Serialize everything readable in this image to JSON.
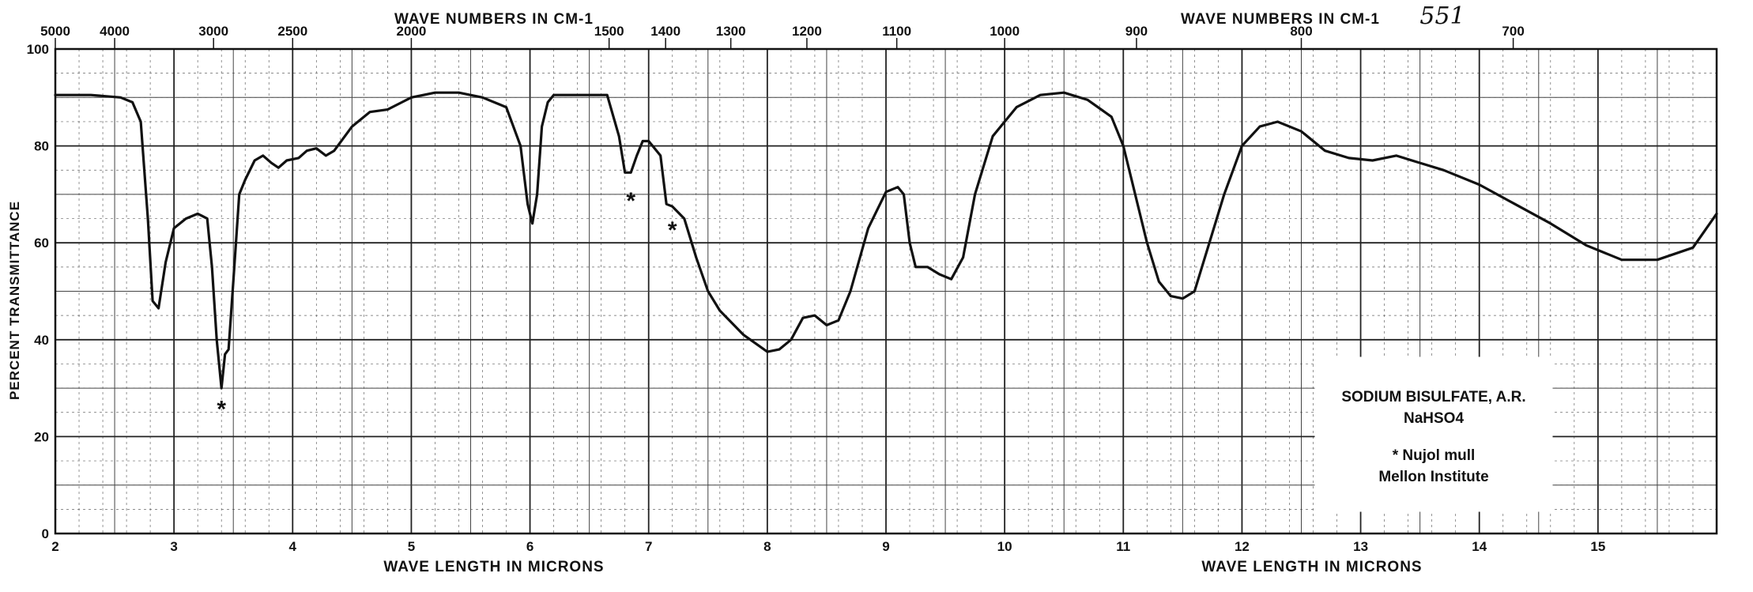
{
  "page_number": "551",
  "chart_data": {
    "type": "line",
    "xlabel": "WAVE LENGTH IN MICRONS",
    "xlabel_right": "WAVE LENGTH IN MICRONS",
    "top_axis_label": "WAVE NUMBERS IN CM-1",
    "top_axis_label_right": "WAVE NUMBERS IN CM-1",
    "ylabel": "PERCENT TRANSMITTANCE",
    "xlim": [
      2,
      16
    ],
    "ylim": [
      0,
      100
    ],
    "grid": true,
    "x_ticks": [
      2,
      3,
      4,
      5,
      6,
      7,
      8,
      9,
      10,
      11,
      12,
      13,
      14,
      15
    ],
    "x_tick_labels": [
      "2",
      "3",
      "4",
      "5",
      "6",
      "7",
      "8",
      "9",
      "10",
      "11",
      "12",
      "13",
      "14",
      "15"
    ],
    "y_ticks": [
      0,
      20,
      40,
      60,
      80,
      100
    ],
    "y_tick_labels": [
      "0",
      "20",
      "40",
      "60",
      "80",
      "100"
    ],
    "top_ticks_cm": [
      5000,
      4000,
      3000,
      2500,
      2000,
      1500,
      1400,
      1300,
      1200,
      1100,
      1000,
      900,
      800,
      700
    ],
    "top_tick_labels": [
      "5000",
      "4000",
      "3000",
      "2500",
      "2000",
      "1500",
      "1400",
      "1300",
      "1200",
      "1100",
      "1000",
      "900",
      "800",
      "700"
    ],
    "series": [
      {
        "x": [
          2.0,
          2.3,
          2.55,
          2.65,
          2.72,
          2.78,
          2.82,
          2.87,
          2.93,
          3.0,
          3.1,
          3.2,
          3.28,
          3.32,
          3.36,
          3.4,
          3.43,
          3.46,
          3.5,
          3.55,
          3.6,
          3.68,
          3.75,
          3.82,
          3.88,
          3.95,
          4.05,
          4.12,
          4.2,
          4.28,
          4.35,
          4.5,
          4.65,
          4.8,
          5.0,
          5.2,
          5.4,
          5.6,
          5.8,
          5.92,
          5.98,
          6.02,
          6.06,
          6.1,
          6.15,
          6.2,
          6.3,
          6.45,
          6.65,
          6.75,
          6.8,
          6.85,
          6.9,
          6.95,
          7.0,
          7.1,
          7.15,
          7.2,
          7.3,
          7.4,
          7.5,
          7.6,
          7.8,
          8.0,
          8.1,
          8.2,
          8.3,
          8.4,
          8.5,
          8.6,
          8.7,
          8.85,
          9.0,
          9.1,
          9.15,
          9.2,
          9.25,
          9.35,
          9.45,
          9.55,
          9.65,
          9.75,
          9.9,
          10.1,
          10.3,
          10.5,
          10.7,
          10.9,
          11.0,
          11.1,
          11.2,
          11.3,
          11.4,
          11.5,
          11.6,
          11.7,
          11.85,
          12.0,
          12.15,
          12.3,
          12.5,
          12.7,
          12.9,
          13.1,
          13.3,
          13.5,
          13.7,
          14.0,
          14.3,
          14.6,
          14.9,
          15.2,
          15.5,
          15.8,
          16.0
        ],
        "y": [
          90.5,
          90.5,
          90,
          89,
          85,
          65,
          48,
          46.5,
          56,
          63,
          65,
          66,
          65,
          55,
          40,
          30,
          37,
          38,
          52,
          70,
          73,
          77,
          78,
          76.5,
          75.5,
          77,
          77.5,
          79,
          79.5,
          78,
          79,
          84,
          87,
          87.5,
          90,
          91,
          91,
          90,
          88,
          80,
          68,
          64,
          70,
          84,
          89,
          90.5,
          90.5,
          90.5,
          90.5,
          82,
          74.5,
          74.5,
          78,
          81,
          81,
          78,
          68,
          67.5,
          65,
          57,
          50,
          46,
          41,
          37.5,
          38,
          40,
          44.5,
          45,
          43,
          44,
          50,
          63,
          70.5,
          71.5,
          70,
          60,
          55,
          55,
          53.5,
          52.5,
          57,
          70,
          82,
          88,
          90.5,
          91,
          89.5,
          86,
          80,
          70,
          60,
          52,
          49,
          48.5,
          50,
          58,
          70,
          80,
          84,
          85,
          83,
          79,
          77.5,
          77,
          78,
          76.5,
          75,
          72,
          68,
          64,
          59.5,
          56.5,
          56.5,
          59,
          66
        ]
      }
    ],
    "annotations": [
      {
        "text": "*",
        "x": 3.4,
        "y": 26
      },
      {
        "text": "*",
        "x": 6.85,
        "y": 69
      },
      {
        "text": "*",
        "x": 7.2,
        "y": 63
      }
    ],
    "legend": {
      "placement": "lower-right",
      "lines": [
        "SODIUM BISULFATE, A.R.",
        "NaHSO4",
        "* Nujol mull",
        "Mellon Institute"
      ]
    }
  }
}
